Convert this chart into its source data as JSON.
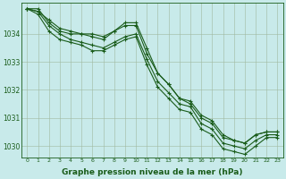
{
  "background_color": "#c8eaea",
  "grid_color": "#a0b8a0",
  "line_color": "#1a5c1a",
  "xlabel": "Graphe pression niveau de la mer (hPa)",
  "xlabel_fontsize": 6.5,
  "xlim_min": -0.5,
  "xlim_max": 23.5,
  "ylim_min": 1029.6,
  "ylim_max": 1035.1,
  "yticks": [
    1030,
    1031,
    1032,
    1033,
    1034
  ],
  "xticks": [
    0,
    1,
    2,
    3,
    4,
    5,
    6,
    7,
    8,
    9,
    10,
    11,
    12,
    13,
    14,
    15,
    16,
    17,
    18,
    19,
    20,
    21,
    22,
    23
  ],
  "series": [
    [
      1034.9,
      1034.9,
      1034.4,
      1034.1,
      1034.0,
      1034.0,
      1033.9,
      1033.8,
      1034.1,
      1034.3,
      1034.3,
      1033.3,
      1032.6,
      1032.2,
      1031.7,
      1031.5,
      1031.0,
      1030.8,
      1030.3,
      1030.2,
      1030.1,
      1030.4,
      1030.5,
      1030.5
    ],
    [
      1034.9,
      1034.8,
      1034.5,
      1034.2,
      1034.1,
      1034.0,
      1034.0,
      1033.9,
      1034.1,
      1034.4,
      1034.4,
      1033.5,
      1032.6,
      1032.2,
      1031.7,
      1031.6,
      1031.1,
      1030.9,
      1030.4,
      1030.2,
      1030.1,
      1030.4,
      1030.5,
      1030.5
    ],
    [
      1034.9,
      1034.8,
      1034.3,
      1034.0,
      1033.8,
      1033.7,
      1033.6,
      1033.5,
      1033.7,
      1033.9,
      1034.0,
      1033.1,
      1032.3,
      1031.9,
      1031.5,
      1031.4,
      1030.8,
      1030.6,
      1030.1,
      1030.0,
      1029.9,
      1030.2,
      1030.4,
      1030.4
    ],
    [
      1034.9,
      1034.7,
      1034.1,
      1033.8,
      1033.7,
      1033.6,
      1033.4,
      1033.4,
      1033.6,
      1033.8,
      1033.9,
      1032.9,
      1032.1,
      1031.7,
      1031.3,
      1031.2,
      1030.6,
      1030.4,
      1029.9,
      1029.8,
      1029.7,
      1030.0,
      1030.3,
      1030.3
    ]
  ]
}
